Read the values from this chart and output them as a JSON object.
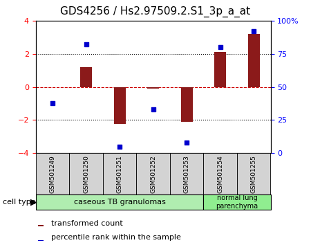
{
  "title": "GDS4256 / Hs2.97509.2.S1_3p_a_at",
  "samples": [
    "GSM501249",
    "GSM501250",
    "GSM501251",
    "GSM501252",
    "GSM501253",
    "GSM501254",
    "GSM501255"
  ],
  "transformed_count": [
    0.0,
    1.2,
    -2.25,
    -0.1,
    -2.1,
    2.1,
    3.2
  ],
  "percentile_rank": [
    38,
    82,
    5,
    33,
    8,
    80,
    92
  ],
  "ylim_left": [
    -4,
    4
  ],
  "ylim_right": [
    0,
    100
  ],
  "yticks_left": [
    -4,
    -2,
    0,
    2,
    4
  ],
  "yticks_right": [
    0,
    25,
    50,
    75,
    100
  ],
  "ytick_labels_right": [
    "0",
    "25",
    "50",
    "75",
    "100%"
  ],
  "bar_color": "#8B1A1A",
  "scatter_color": "#0000CD",
  "zero_line_color": "#cc0000",
  "dotted_line_color": "#000000",
  "group1_label": "caseous TB granulomas",
  "group2_label": "normal lung\nparenchyma",
  "group1_indices": [
    0,
    1,
    2,
    3,
    4
  ],
  "group2_indices": [
    5,
    6
  ],
  "group1_color": "#b0edb0",
  "group2_color": "#90ee90",
  "cell_type_label": "cell type",
  "legend_bar_label": "transformed count",
  "legend_scatter_label": "percentile rank within the sample",
  "bar_width": 0.35,
  "sample_box_color": "#d3d3d3",
  "title_fontsize": 11,
  "tick_fontsize": 8,
  "legend_fontsize": 8
}
